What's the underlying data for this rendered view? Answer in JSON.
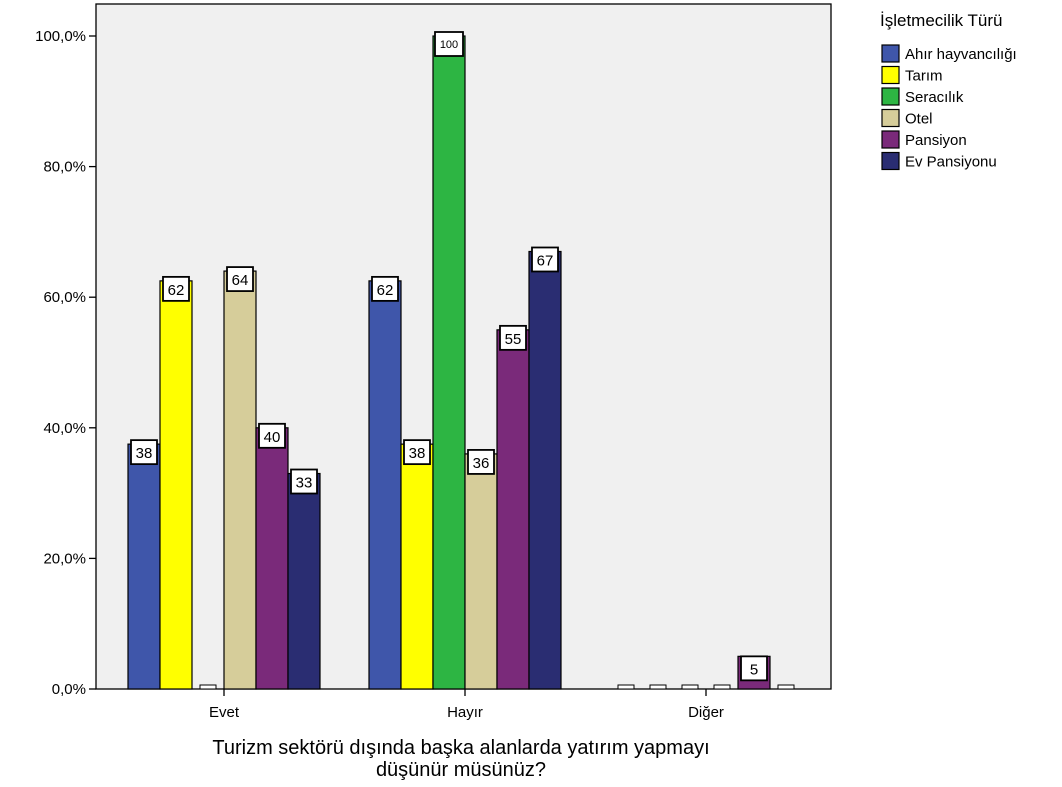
{
  "chart_data": {
    "type": "bar",
    "categories": [
      "Evet",
      "Hayır",
      "Diğer"
    ],
    "series": [
      {
        "name": "Ahır hayvancılığı",
        "color": "#3f56aa",
        "values": [
          37.5,
          62.5,
          0
        ],
        "labels": [
          "38",
          "62",
          ""
        ]
      },
      {
        "name": "Tarım",
        "color": "#ffff00",
        "values": [
          62.5,
          37.5,
          0
        ],
        "labels": [
          "62",
          "38",
          ""
        ]
      },
      {
        "name": "Seracılık",
        "color": "#2db543",
        "values": [
          0,
          100,
          0
        ],
        "labels": [
          "",
          "100",
          ""
        ]
      },
      {
        "name": "Otel",
        "color": "#d6cd9a",
        "values": [
          64,
          36,
          0
        ],
        "labels": [
          "64",
          "36",
          ""
        ]
      },
      {
        "name": "Pansiyon",
        "color": "#7a2a7a",
        "values": [
          40,
          55,
          5
        ],
        "labels": [
          "40",
          "55",
          "5"
        ]
      },
      {
        "name": "Ev Pansiyonu",
        "color": "#2a2d72",
        "values": [
          33,
          67,
          0
        ],
        "labels": [
          "33",
          "67",
          ""
        ]
      }
    ],
    "xlabel": [
      "Turizm sektörü dışında başka alanlarda yatırım yapmayı",
      "düşünür müsünüz?"
    ],
    "ylabel": "",
    "ylim": [
      0,
      100
    ],
    "yticks": [
      0,
      20,
      40,
      60,
      80,
      100
    ],
    "ytick_labels": [
      "0,0%",
      "20,0%",
      "40,0%",
      "60,0%",
      "80,0%",
      "100,0%"
    ],
    "legend_title": "İşletmecilik Türü",
    "legend_position": "top-right",
    "grid": false,
    "plot_background": "#f0f0f0"
  }
}
